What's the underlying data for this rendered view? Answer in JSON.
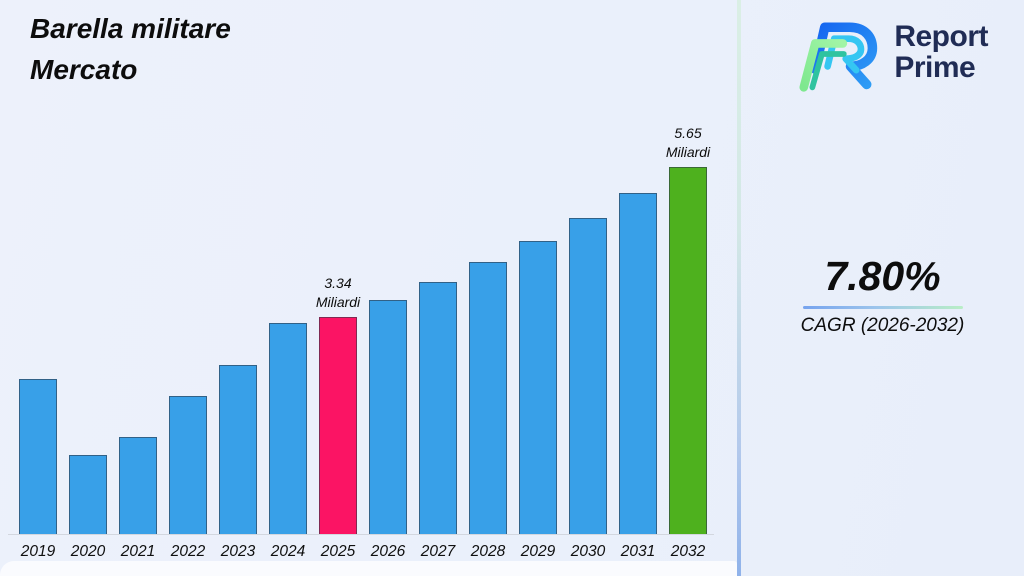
{
  "header": {
    "title_line1": "Barella militare",
    "title_line2": "Mercato"
  },
  "brand": {
    "name_line1": "Report",
    "name_line2": "Prime"
  },
  "kpi": {
    "value": "7.80%",
    "label": "CAGR (2026-2032)"
  },
  "chart_data": {
    "type": "bar",
    "title": "Barella militare Mercato",
    "unit": "Miliardi",
    "categories": [
      "2019",
      "2020",
      "2021",
      "2022",
      "2023",
      "2024",
      "2025",
      "2026",
      "2027",
      "2028",
      "2029",
      "2030",
      "2031",
      "2032"
    ],
    "values": [
      2.38,
      1.21,
      1.49,
      2.13,
      2.6,
      3.24,
      3.34,
      3.6,
      3.88,
      4.19,
      4.51,
      4.86,
      5.24,
      5.65
    ],
    "ylim": [
      0,
      6
    ],
    "grid": false,
    "legend": false,
    "bar_colors": {
      "default": "#38a0e8",
      "2025": "#fb1464",
      "2032": "#4eb11e"
    },
    "annotations": [
      {
        "category": "2025",
        "lines": [
          "3.34",
          "Miliardi"
        ]
      },
      {
        "category": "2032",
        "lines": [
          "5.65",
          "Miliardi"
        ]
      }
    ]
  },
  "colors": {
    "bar_default": "#38a0e8",
    "bar_highlight_pink": "#fb1464",
    "bar_highlight_green": "#4eb11e",
    "brand_text": "#202c55",
    "separator_top": "#daefe5",
    "separator_bottom": "#8fb2ea",
    "kpi_divider_start": "#76a3ee",
    "kpi_divider_end": "#b9eec6",
    "background": "#eaf0fb"
  }
}
